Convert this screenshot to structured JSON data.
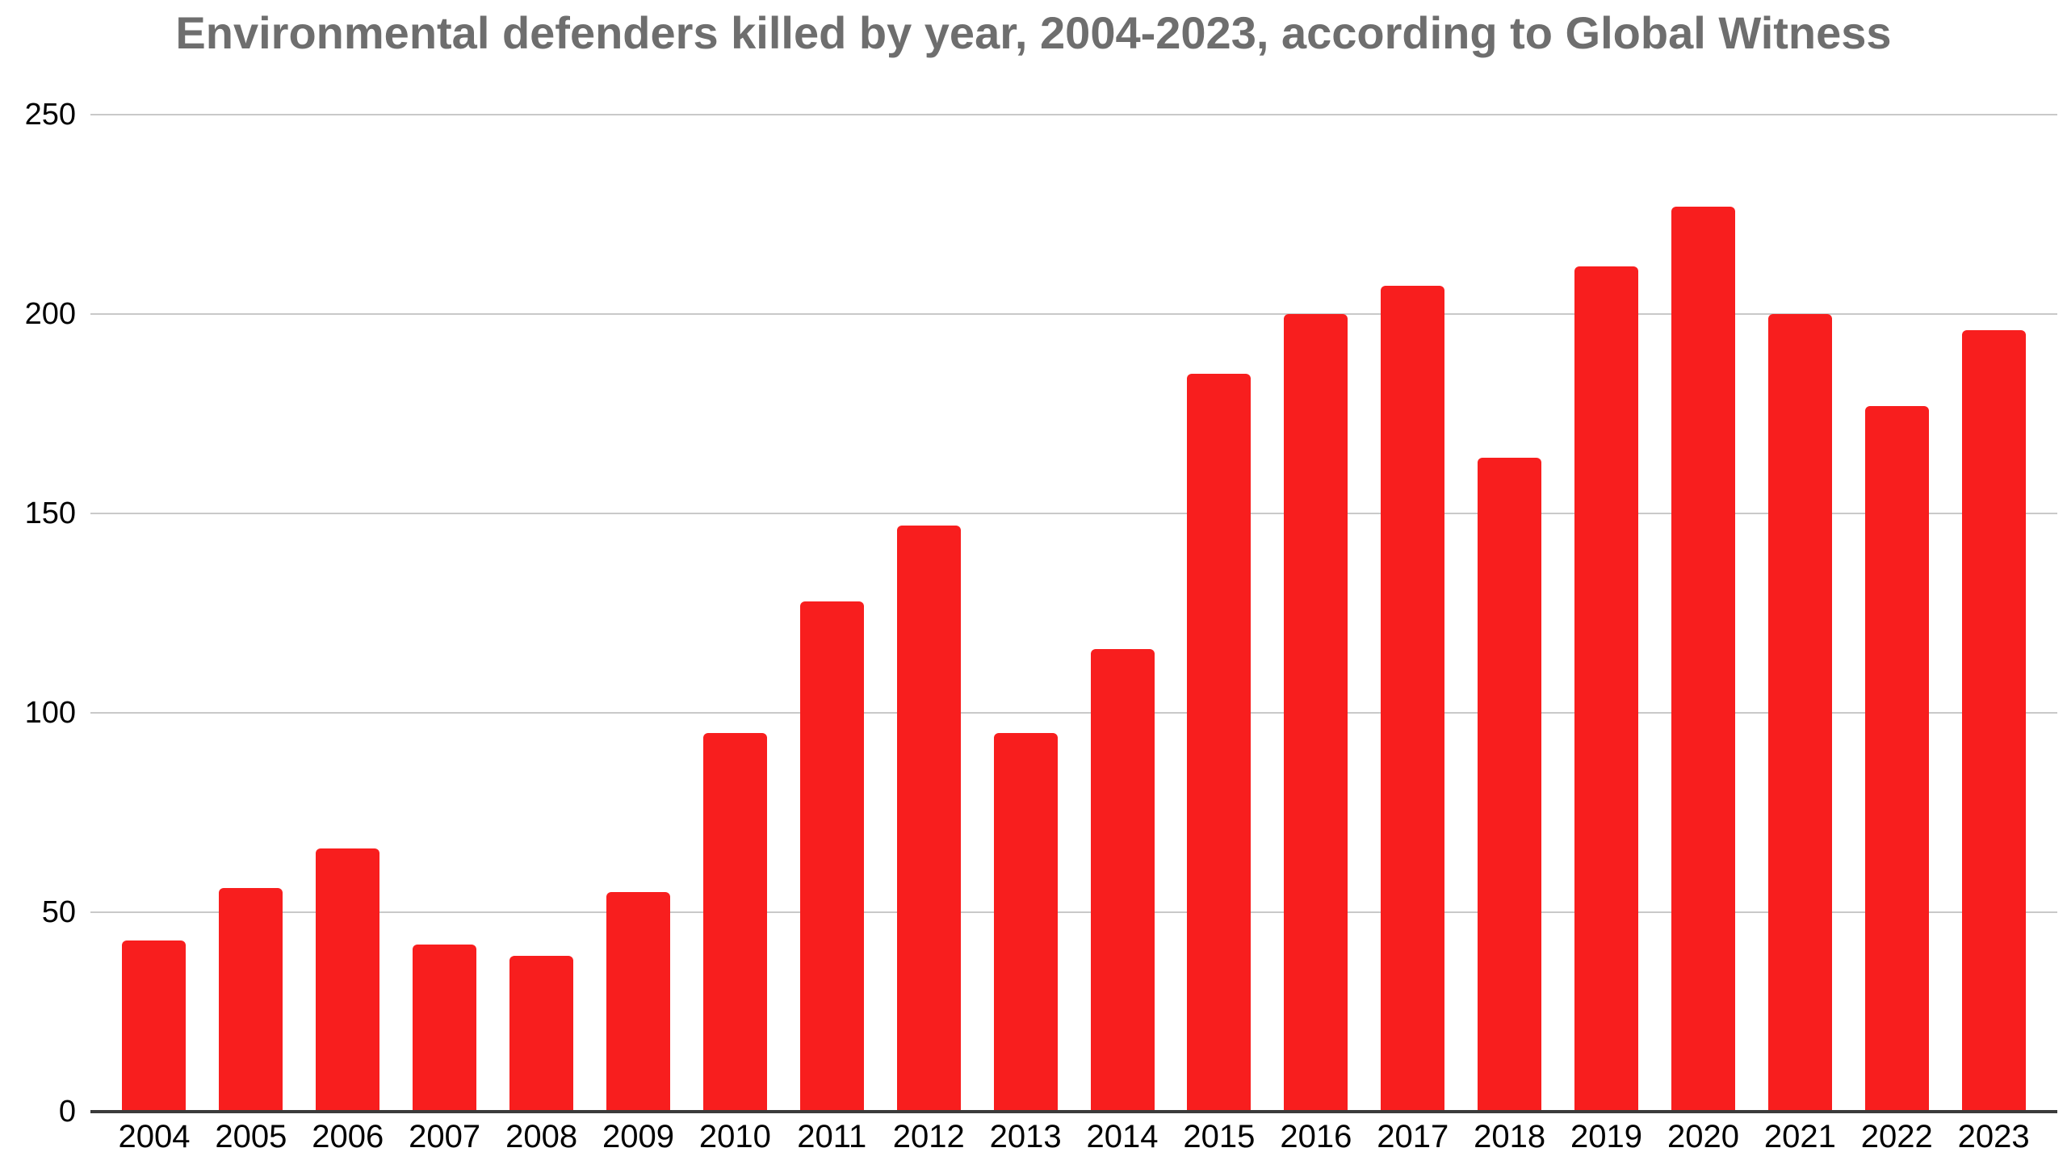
{
  "chart_data": {
    "type": "bar",
    "title": "Environmental defenders killed by year, 2004-2023, according to Global Witness",
    "categories": [
      "2004",
      "2005",
      "2006",
      "2007",
      "2008",
      "2009",
      "2010",
      "2011",
      "2012",
      "2013",
      "2014",
      "2015",
      "2016",
      "2017",
      "2018",
      "2019",
      "2020",
      "2021",
      "2022",
      "2023"
    ],
    "values": [
      43,
      56,
      66,
      42,
      39,
      55,
      95,
      128,
      147,
      95,
      116,
      185,
      200,
      207,
      164,
      212,
      227,
      200,
      177,
      196
    ],
    "series_name": "Environmental defenders killed",
    "xlabel": "",
    "ylabel": "",
    "ylim": [
      0,
      250
    ],
    "yticks": [
      0,
      50,
      100,
      150,
      200,
      250
    ],
    "grid": true,
    "legend": "none",
    "bar_color": "#f81e1e",
    "title_color": "#6e6e6e",
    "gridline_color": "#c9c9c9",
    "axis_line_color": "#3b3b3b",
    "tick_label_color": "#000000"
  }
}
